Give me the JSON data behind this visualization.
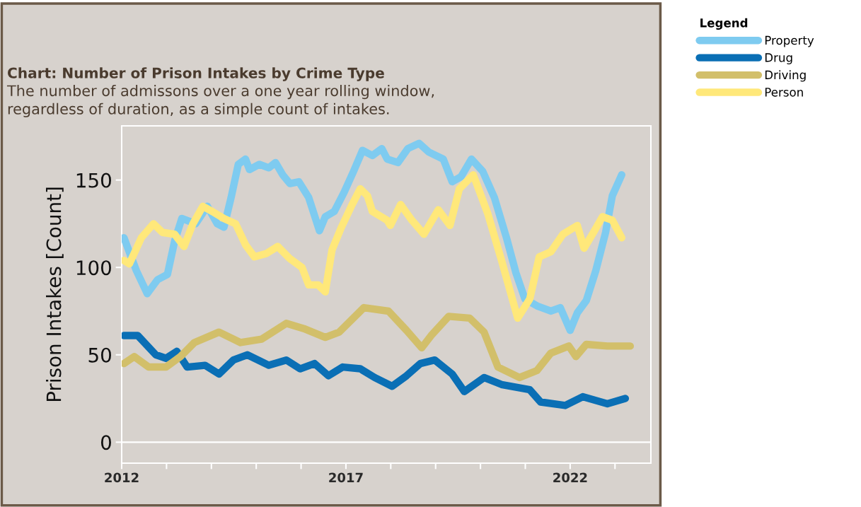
{
  "chart_data": {
    "type": "line",
    "title": "Chart: Number of Prison Intakes by Crime Type",
    "subtitle": "The number of admissons over a one year rolling window,\nregardless of duration, as a simple count of intakes.",
    "ylabel": "Prison Intakes [Count]",
    "legend_title": "Legend",
    "legend": "top right",
    "grid": false,
    "marker": "none",
    "line_style": "solid",
    "xlim": [
      2012,
      2023.8
    ],
    "ylim": [
      -12,
      181
    ],
    "xticks": [
      2012,
      {
        "value": 2013,
        "label": null
      },
      {
        "value": 2014,
        "label": null
      },
      {
        "value": 2015,
        "label": null
      },
      {
        "value": 2016,
        "label": null
      },
      2017,
      {
        "value": 2018,
        "label": null
      },
      {
        "value": 2019,
        "label": null
      },
      {
        "value": 2020,
        "label": null
      },
      {
        "value": 2021,
        "label": null
      },
      2022,
      {
        "value": 2023,
        "label": null
      }
    ],
    "yticks": [
      0,
      50,
      100,
      150
    ],
    "ref_lines": [
      {
        "axis": "y",
        "value": 0,
        "color": "#ffffff"
      }
    ],
    "series": [
      {
        "name": "Property",
        "color": "#7ecbf0",
        "x": [
          2012.05,
          2012.33,
          2012.57,
          2012.8,
          2013.02,
          2013.18,
          2013.34,
          2013.65,
          2013.91,
          2014.13,
          2014.28,
          2014.44,
          2014.6,
          2014.76,
          2014.85,
          2015.07,
          2015.28,
          2015.43,
          2015.59,
          2015.75,
          2015.95,
          2016.17,
          2016.41,
          2016.54,
          2016.74,
          2016.96,
          2017.17,
          2017.37,
          2017.59,
          2017.8,
          2017.92,
          2018.16,
          2018.38,
          2018.63,
          2018.85,
          2019.17,
          2019.37,
          2019.57,
          2019.8,
          2020.05,
          2020.31,
          2020.58,
          2020.79,
          2020.99,
          2021.26,
          2021.57,
          2021.78,
          2022.0,
          2022.16,
          2022.36,
          2022.57,
          2022.79,
          2022.94,
          2023.15
        ],
        "values": [
          117,
          98,
          85,
          93,
          96,
          115,
          128,
          125,
          135,
          125,
          123,
          140,
          159,
          162,
          156,
          159,
          157,
          160,
          153,
          148,
          149,
          140,
          121,
          129,
          132,
          143,
          155,
          167,
          164,
          168,
          162,
          160,
          168,
          171,
          166,
          162,
          149,
          152,
          162,
          155,
          140,
          117,
          97,
          82,
          78,
          75,
          77,
          64,
          74,
          81,
          98,
          120,
          141,
          153
        ]
      },
      {
        "name": "Drug",
        "color": "#0a6fb5",
        "x": [
          2012.05,
          2012.36,
          2012.76,
          2012.99,
          2013.23,
          2013.46,
          2013.86,
          2014.17,
          2014.49,
          2014.8,
          2015.28,
          2015.67,
          2015.98,
          2016.3,
          2016.61,
          2016.93,
          2017.32,
          2017.64,
          2018.03,
          2018.35,
          2018.66,
          2018.98,
          2019.37,
          2019.64,
          2020.08,
          2020.47,
          2021.1,
          2021.34,
          2021.89,
          2022.28,
          2022.83,
          2023.23
        ],
        "values": [
          61,
          61,
          50,
          48,
          52,
          43,
          44,
          39,
          47,
          50,
          44,
          47,
          42,
          45,
          38,
          43,
          42,
          37,
          32,
          38,
          45,
          47,
          39,
          29,
          37,
          33,
          30,
          23,
          21,
          26,
          22,
          25
        ]
      },
      {
        "name": "Driving",
        "color": "#d2bf6a",
        "x": [
          2012.05,
          2012.28,
          2012.6,
          2012.99,
          2013.31,
          2013.62,
          2014.17,
          2014.65,
          2015.12,
          2015.67,
          2016.06,
          2016.54,
          2016.85,
          2017.4,
          2017.95,
          2018.35,
          2018.69,
          2018.9,
          2019.29,
          2019.76,
          2020.08,
          2020.39,
          2020.87,
          2021.26,
          2021.57,
          2021.97,
          2022.13,
          2022.36,
          2022.83,
          2023.34
        ],
        "values": [
          45,
          49,
          43,
          43,
          49,
          57,
          63,
          57,
          59,
          68,
          65,
          60,
          63,
          77,
          75,
          64,
          54,
          61,
          72,
          71,
          63,
          43,
          37,
          41,
          51,
          55,
          49,
          56,
          55,
          55
        ]
      },
      {
        "name": "Person",
        "color": "#ffe87a",
        "x": [
          2012.05,
          2012.17,
          2012.44,
          2012.71,
          2012.91,
          2013.18,
          2013.39,
          2013.59,
          2013.81,
          2014.02,
          2014.28,
          2014.54,
          2014.76,
          2014.96,
          2015.23,
          2015.48,
          2015.75,
          2016.02,
          2016.17,
          2016.38,
          2016.54,
          2016.69,
          2016.9,
          2017.12,
          2017.32,
          2017.48,
          2017.59,
          2017.92,
          2017.99,
          2018.22,
          2018.47,
          2018.74,
          2019.06,
          2019.32,
          2019.53,
          2019.84,
          2020.16,
          2020.47,
          2020.83,
          2021.1,
          2021.31,
          2021.57,
          2021.84,
          2022.16,
          2022.31,
          2022.52,
          2022.72,
          2022.94,
          2023.15
        ],
        "values": [
          104,
          102,
          117,
          125,
          120,
          119,
          112,
          125,
          135,
          132,
          128,
          125,
          113,
          106,
          108,
          112,
          105,
          100,
          90,
          90,
          86,
          110,
          123,
          135,
          145,
          141,
          132,
          127,
          124,
          136,
          127,
          119,
          133,
          124,
          145,
          153,
          131,
          104,
          71,
          82,
          106,
          109,
          119,
          124,
          111,
          120,
          129,
          127,
          117
        ]
      }
    ]
  }
}
